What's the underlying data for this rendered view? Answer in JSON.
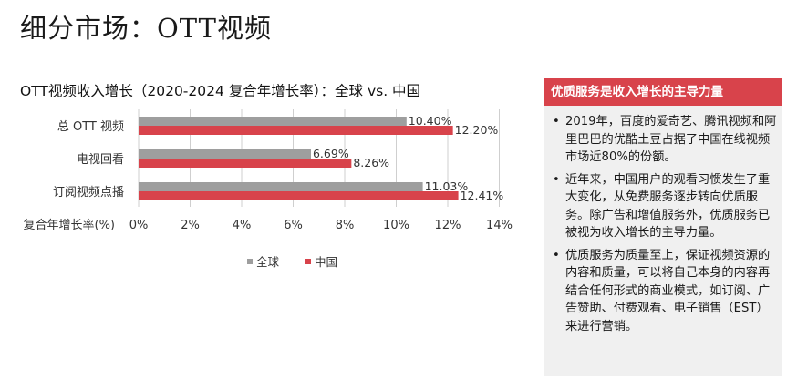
{
  "page": {
    "title": "细分市场：OTT视频"
  },
  "colors": {
    "global": "#9e9e9e",
    "china": "#d8434b",
    "axis": "#cfcfcf"
  },
  "chart_data": {
    "type": "bar",
    "orientation": "horizontal",
    "title": "OTT视频收入增长（2020-2024 复合年增长率）：全球 vs. 中国",
    "categories": [
      "总 OTT 视频",
      "电视回看",
      "订阅视频点播"
    ],
    "series": [
      {
        "name": "全球",
        "values": [
          10.4,
          6.69,
          11.03
        ],
        "labels": [
          "10.40%",
          "6.69%",
          "11.03%"
        ]
      },
      {
        "name": "中国",
        "values": [
          12.2,
          8.26,
          12.41
        ],
        "labels": [
          "12.20%",
          "8.26%",
          "12.41%"
        ]
      }
    ],
    "xlabel": "复合年增长率(%)",
    "xlim": [
      0,
      14
    ],
    "xticks": [
      0,
      2,
      4,
      6,
      8,
      10,
      12,
      14
    ],
    "xtick_labels": [
      "0%",
      "2%",
      "4%",
      "6%",
      "8%",
      "10%",
      "12%",
      "14%"
    ],
    "legend": {
      "position": "bottom",
      "entries": [
        "全球",
        "中国"
      ]
    }
  },
  "sidebar": {
    "title": "优质服务是收入增长的主导力量",
    "bullet_symbol": "•",
    "bullets": [
      "2019年，百度的爱奇艺、腾讯视频和阿里巴巴的优酷土豆占据了中国在线视频市场近80%的份额。",
      "近年来，中国用户的观看习惯发生了重大变化，从免费服务逐步转向优质服务。除广告和增值服务外，优质服务已被视为收入增长的主导力量。",
      "优质服务为质量至上，保证视频资源的内容和质量，可以将自己本身的内容再结合任何形式的商业模式，如订阅、广告赞助、付费观看、电子销售（EST）来进行营销。"
    ]
  }
}
